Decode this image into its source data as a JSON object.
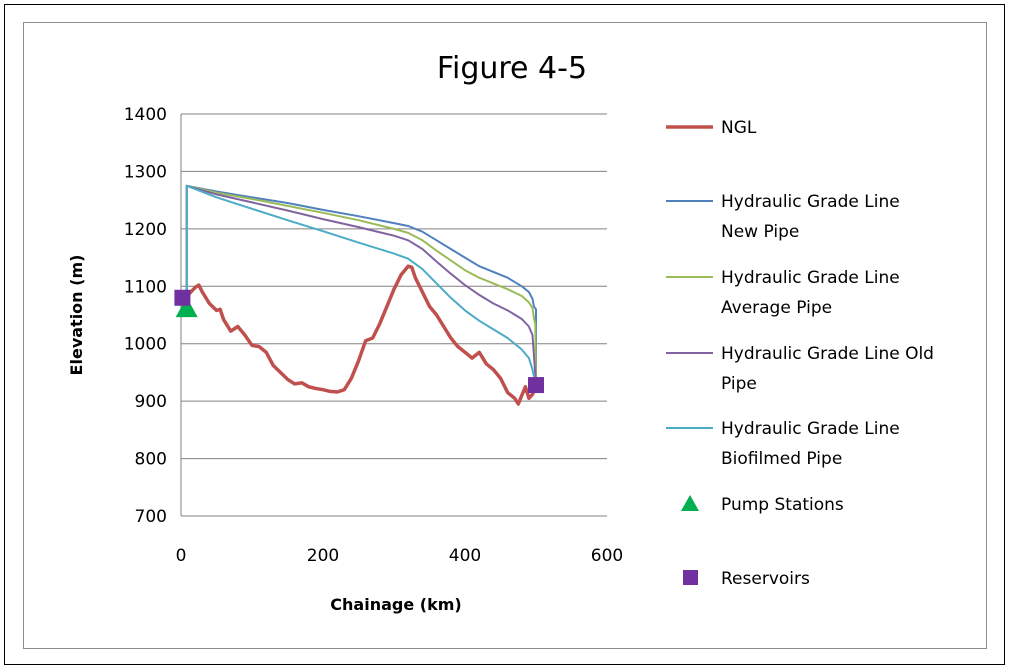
{
  "chart_data": {
    "type": "line",
    "title": "Figure 4-5",
    "xlabel": "Chainage (km)",
    "ylabel": "Elevation (m)",
    "xlim": [
      0,
      600
    ],
    "ylim": [
      700,
      1400
    ],
    "x_ticks": [
      0,
      200,
      400,
      600
    ],
    "y_ticks": [
      700,
      800,
      900,
      1000,
      1100,
      1200,
      1300,
      1400
    ],
    "grid": "horizontal",
    "legend_position": "right",
    "series": [
      {
        "name": "NGL",
        "legend_lines": [
          "NGL"
        ],
        "kind": "line",
        "color": "#c0504d",
        "x": [
          0,
          10,
          20,
          25,
          30,
          40,
          50,
          55,
          60,
          70,
          80,
          90,
          100,
          110,
          120,
          130,
          140,
          150,
          160,
          170,
          180,
          190,
          200,
          210,
          220,
          230,
          240,
          250,
          260,
          270,
          280,
          290,
          300,
          310,
          320,
          325,
          330,
          340,
          350,
          360,
          370,
          380,
          390,
          400,
          410,
          420,
          430,
          440,
          450,
          460,
          470,
          475,
          480,
          485,
          490,
          495,
          500
        ],
        "y": [
          1080,
          1085,
          1098,
          1102,
          1090,
          1070,
          1058,
          1060,
          1042,
          1022,
          1030,
          1015,
          997,
          995,
          985,
          962,
          950,
          938,
          930,
          932,
          925,
          922,
          920,
          917,
          916,
          920,
          940,
          970,
          1005,
          1010,
          1035,
          1065,
          1095,
          1120,
          1135,
          1133,
          1115,
          1090,
          1065,
          1050,
          1030,
          1010,
          995,
          985,
          975,
          985,
          965,
          955,
          940,
          915,
          905,
          895,
          910,
          925,
          905,
          912,
          928
        ]
      },
      {
        "name": "Hydraulic Grade Line New Pipe",
        "legend_lines": [
          "Hydraulic Grade Line",
          "New Pipe"
        ],
        "kind": "line",
        "color": "#4f81bd",
        "x": [
          8,
          8,
          50,
          100,
          150,
          200,
          250,
          300,
          320,
          340,
          360,
          380,
          400,
          420,
          440,
          460,
          480,
          490,
          495,
          497,
          500,
          500
        ],
        "y": [
          1080,
          1275,
          1265,
          1255,
          1245,
          1233,
          1222,
          1210,
          1205,
          1195,
          1180,
          1165,
          1150,
          1135,
          1125,
          1115,
          1100,
          1090,
          1078,
          1065,
          1060,
          928
        ]
      },
      {
        "name": "Hydraulic Grade Line Average Pipe",
        "legend_lines": [
          "Hydraulic Grade Line",
          "Average Pipe"
        ],
        "kind": "line",
        "color": "#9bbb59",
        "x": [
          8,
          8,
          50,
          100,
          150,
          200,
          250,
          300,
          320,
          340,
          360,
          380,
          400,
          420,
          440,
          460,
          480,
          490,
          495,
          497,
          499,
          500
        ],
        "y": [
          1080,
          1275,
          1263,
          1252,
          1240,
          1228,
          1215,
          1200,
          1193,
          1180,
          1162,
          1145,
          1128,
          1115,
          1105,
          1095,
          1083,
          1072,
          1062,
          1045,
          1035,
          928
        ]
      },
      {
        "name": "Hydraulic Grade Line Old Pipe",
        "legend_lines": [
          "Hydraulic Grade Line Old",
          "Pipe"
        ],
        "kind": "line",
        "color": "#8064a2",
        "x": [
          8,
          8,
          50,
          100,
          150,
          200,
          250,
          300,
          320,
          340,
          360,
          380,
          400,
          420,
          440,
          460,
          480,
          490,
          495,
          500
        ],
        "y": [
          1080,
          1275,
          1260,
          1246,
          1232,
          1217,
          1203,
          1188,
          1180,
          1165,
          1143,
          1122,
          1102,
          1085,
          1070,
          1058,
          1043,
          1030,
          1015,
          928
        ]
      },
      {
        "name": "Hydraulic Grade Line Biofilmed Pipe",
        "legend_lines": [
          "Hydraulic Grade Line",
          "Biofilmed Pipe"
        ],
        "kind": "line",
        "color": "#4bacc6",
        "x": [
          8,
          8,
          50,
          100,
          150,
          200,
          250,
          300,
          320,
          340,
          360,
          380,
          400,
          420,
          440,
          460,
          480,
          490,
          495,
          500
        ],
        "y": [
          1080,
          1275,
          1255,
          1235,
          1215,
          1196,
          1176,
          1157,
          1148,
          1130,
          1105,
          1080,
          1058,
          1040,
          1025,
          1010,
          990,
          975,
          955,
          928
        ]
      },
      {
        "name": "Pump Stations",
        "legend_lines": [
          "Pump Stations"
        ],
        "kind": "marker",
        "marker": "triangle",
        "color": "#00b050",
        "x": [
          8
        ],
        "y": [
          1062
        ]
      },
      {
        "name": "Reservoirs",
        "legend_lines": [
          "Reservoirs"
        ],
        "kind": "marker",
        "marker": "square",
        "color": "#7030a0",
        "x": [
          2,
          500
        ],
        "y": [
          1080,
          928
        ]
      }
    ]
  }
}
